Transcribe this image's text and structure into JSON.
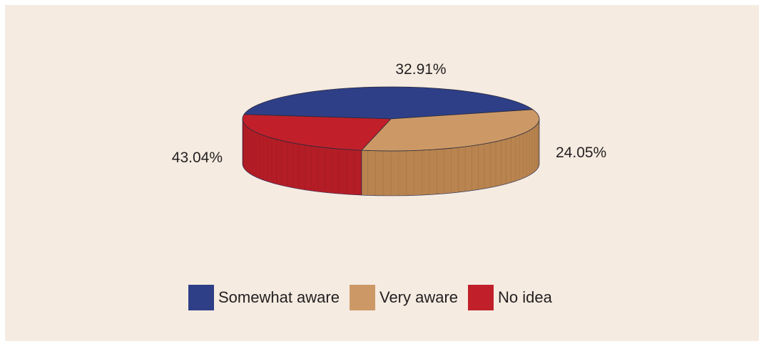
{
  "chart_data": {
    "type": "pie",
    "style": "3d",
    "title": "",
    "slices": [
      {
        "label": "Somewhat aware",
        "value": 43.04,
        "display": "43.04%",
        "color": "#2e3f87",
        "side_color": "#2a3679"
      },
      {
        "label": "Very aware",
        "value": 32.91,
        "display": "32.91%",
        "color": "#cc9966",
        "side_color": "#b9844f"
      },
      {
        "label": "No idea",
        "value": 24.05,
        "display": "24.05%",
        "color": "#c1202a",
        "side_color": "#b41d26"
      }
    ],
    "legend": {
      "placement": "bottom",
      "items": [
        {
          "label": "Somewhat aware",
          "color": "#2e3f87"
        },
        {
          "label": "Very aware",
          "color": "#cc9966"
        },
        {
          "label": "No idea",
          "color": "#c1202a"
        }
      ]
    },
    "background_color": "#f5ebe1"
  }
}
